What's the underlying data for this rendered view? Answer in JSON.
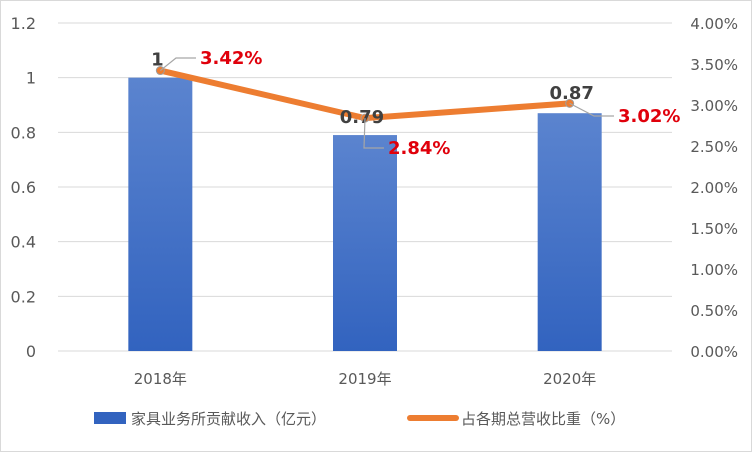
{
  "chart_data": {
    "type": "bar+line",
    "categories": [
      "2018年",
      "2019年",
      "2020年"
    ],
    "series": [
      {
        "name": "家具业务所贡献收入（亿元）",
        "type": "bar",
        "axis": "left",
        "values": [
          1,
          0.79,
          0.87
        ],
        "data_labels": [
          "1",
          "0.79",
          "0.87"
        ]
      },
      {
        "name": "占各期总营收比重（%）",
        "type": "line",
        "axis": "right",
        "values": [
          3.42,
          2.84,
          3.02
        ],
        "data_labels": [
          "3.42%",
          "2.84%",
          "3.02%"
        ]
      }
    ],
    "y_left": {
      "min": 0,
      "max": 1.2,
      "step": 0.2,
      "ticks": [
        "0",
        "0.2",
        "0.4",
        "0.6",
        "0.8",
        "1",
        "1.2"
      ]
    },
    "y_right": {
      "min": 0,
      "max": 4,
      "step": 0.5,
      "ticks": [
        "0.00%",
        "0.50%",
        "1.00%",
        "1.50%",
        "2.00%",
        "2.50%",
        "3.00%",
        "3.50%",
        "4.00%"
      ]
    },
    "grid": true,
    "legend_position": "bottom",
    "colors": {
      "bar_top": "#5b84cf",
      "bar_bottom": "#3263bf",
      "line": "#ed7d31",
      "line_label": "#e0000b",
      "bar_label": "#404040",
      "grid": "#d9d9d9",
      "axis_text": "#595959"
    }
  }
}
